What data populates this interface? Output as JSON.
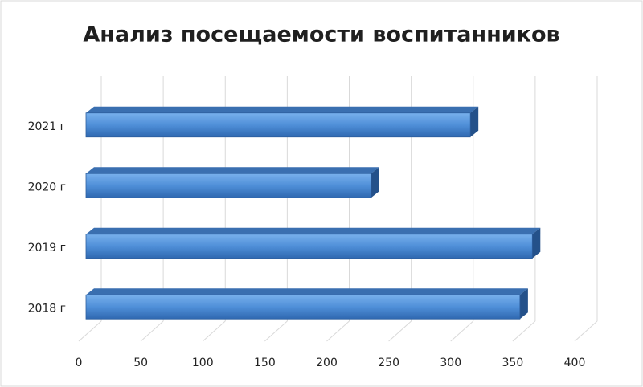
{
  "chart_data": {
    "type": "bar",
    "orientation": "horizontal",
    "title": "Анализ посещаемости воспитанников",
    "categories": [
      "2018 г",
      "2019 г",
      "2020 г",
      "2021 г"
    ],
    "values": [
      350,
      360,
      230,
      310
    ],
    "color": "#4f8fd8",
    "xlim": [
      0,
      400
    ],
    "xticks": [
      0,
      50,
      100,
      150,
      200,
      250,
      300,
      350,
      400
    ],
    "grid": true
  }
}
